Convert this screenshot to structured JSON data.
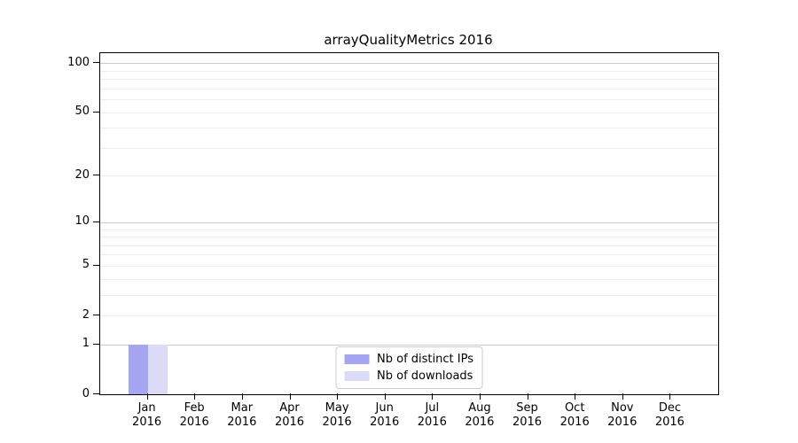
{
  "chart_data": {
    "type": "bar",
    "title": "arrayQualityMetrics 2016",
    "categories": [
      "Jan",
      "Feb",
      "Mar",
      "Apr",
      "May",
      "Jun",
      "Jul",
      "Aug",
      "Sep",
      "Oct",
      "Nov",
      "Dec"
    ],
    "category_year": "2016",
    "series": [
      {
        "name": "Nb of distinct IPs",
        "color": "#a5a5f2",
        "values": [
          1,
          0,
          0,
          0,
          0,
          0,
          0,
          0,
          0,
          0,
          0,
          0
        ]
      },
      {
        "name": "Nb of downloads",
        "color": "#dbdbf8",
        "values": [
          1,
          0,
          0,
          0,
          0,
          0,
          0,
          0,
          0,
          0,
          0,
          0
        ]
      }
    ],
    "xlabel": "",
    "ylabel": "",
    "yscale": "log1p",
    "ylim": [
      0,
      115
    ],
    "ytick_values": [
      0,
      1,
      2,
      5,
      10,
      20,
      50,
      100
    ],
    "ytick_labels": [
      "0",
      "1",
      "2",
      "5",
      "10",
      "20",
      "50",
      "100"
    ],
    "grid": "horizontal",
    "grid_major_values": [
      1,
      10,
      100
    ],
    "grid_minor_values": [
      2,
      3,
      4,
      5,
      6,
      7,
      8,
      9,
      20,
      30,
      40,
      50,
      60,
      70,
      80,
      90
    ],
    "legend_position": "lower center",
    "colors": {
      "axis": "#000000",
      "major_grid": "#c9c9c9",
      "minor_grid": "#ededed",
      "legend_border": "#cccccc",
      "background": "#ffffff"
    }
  }
}
